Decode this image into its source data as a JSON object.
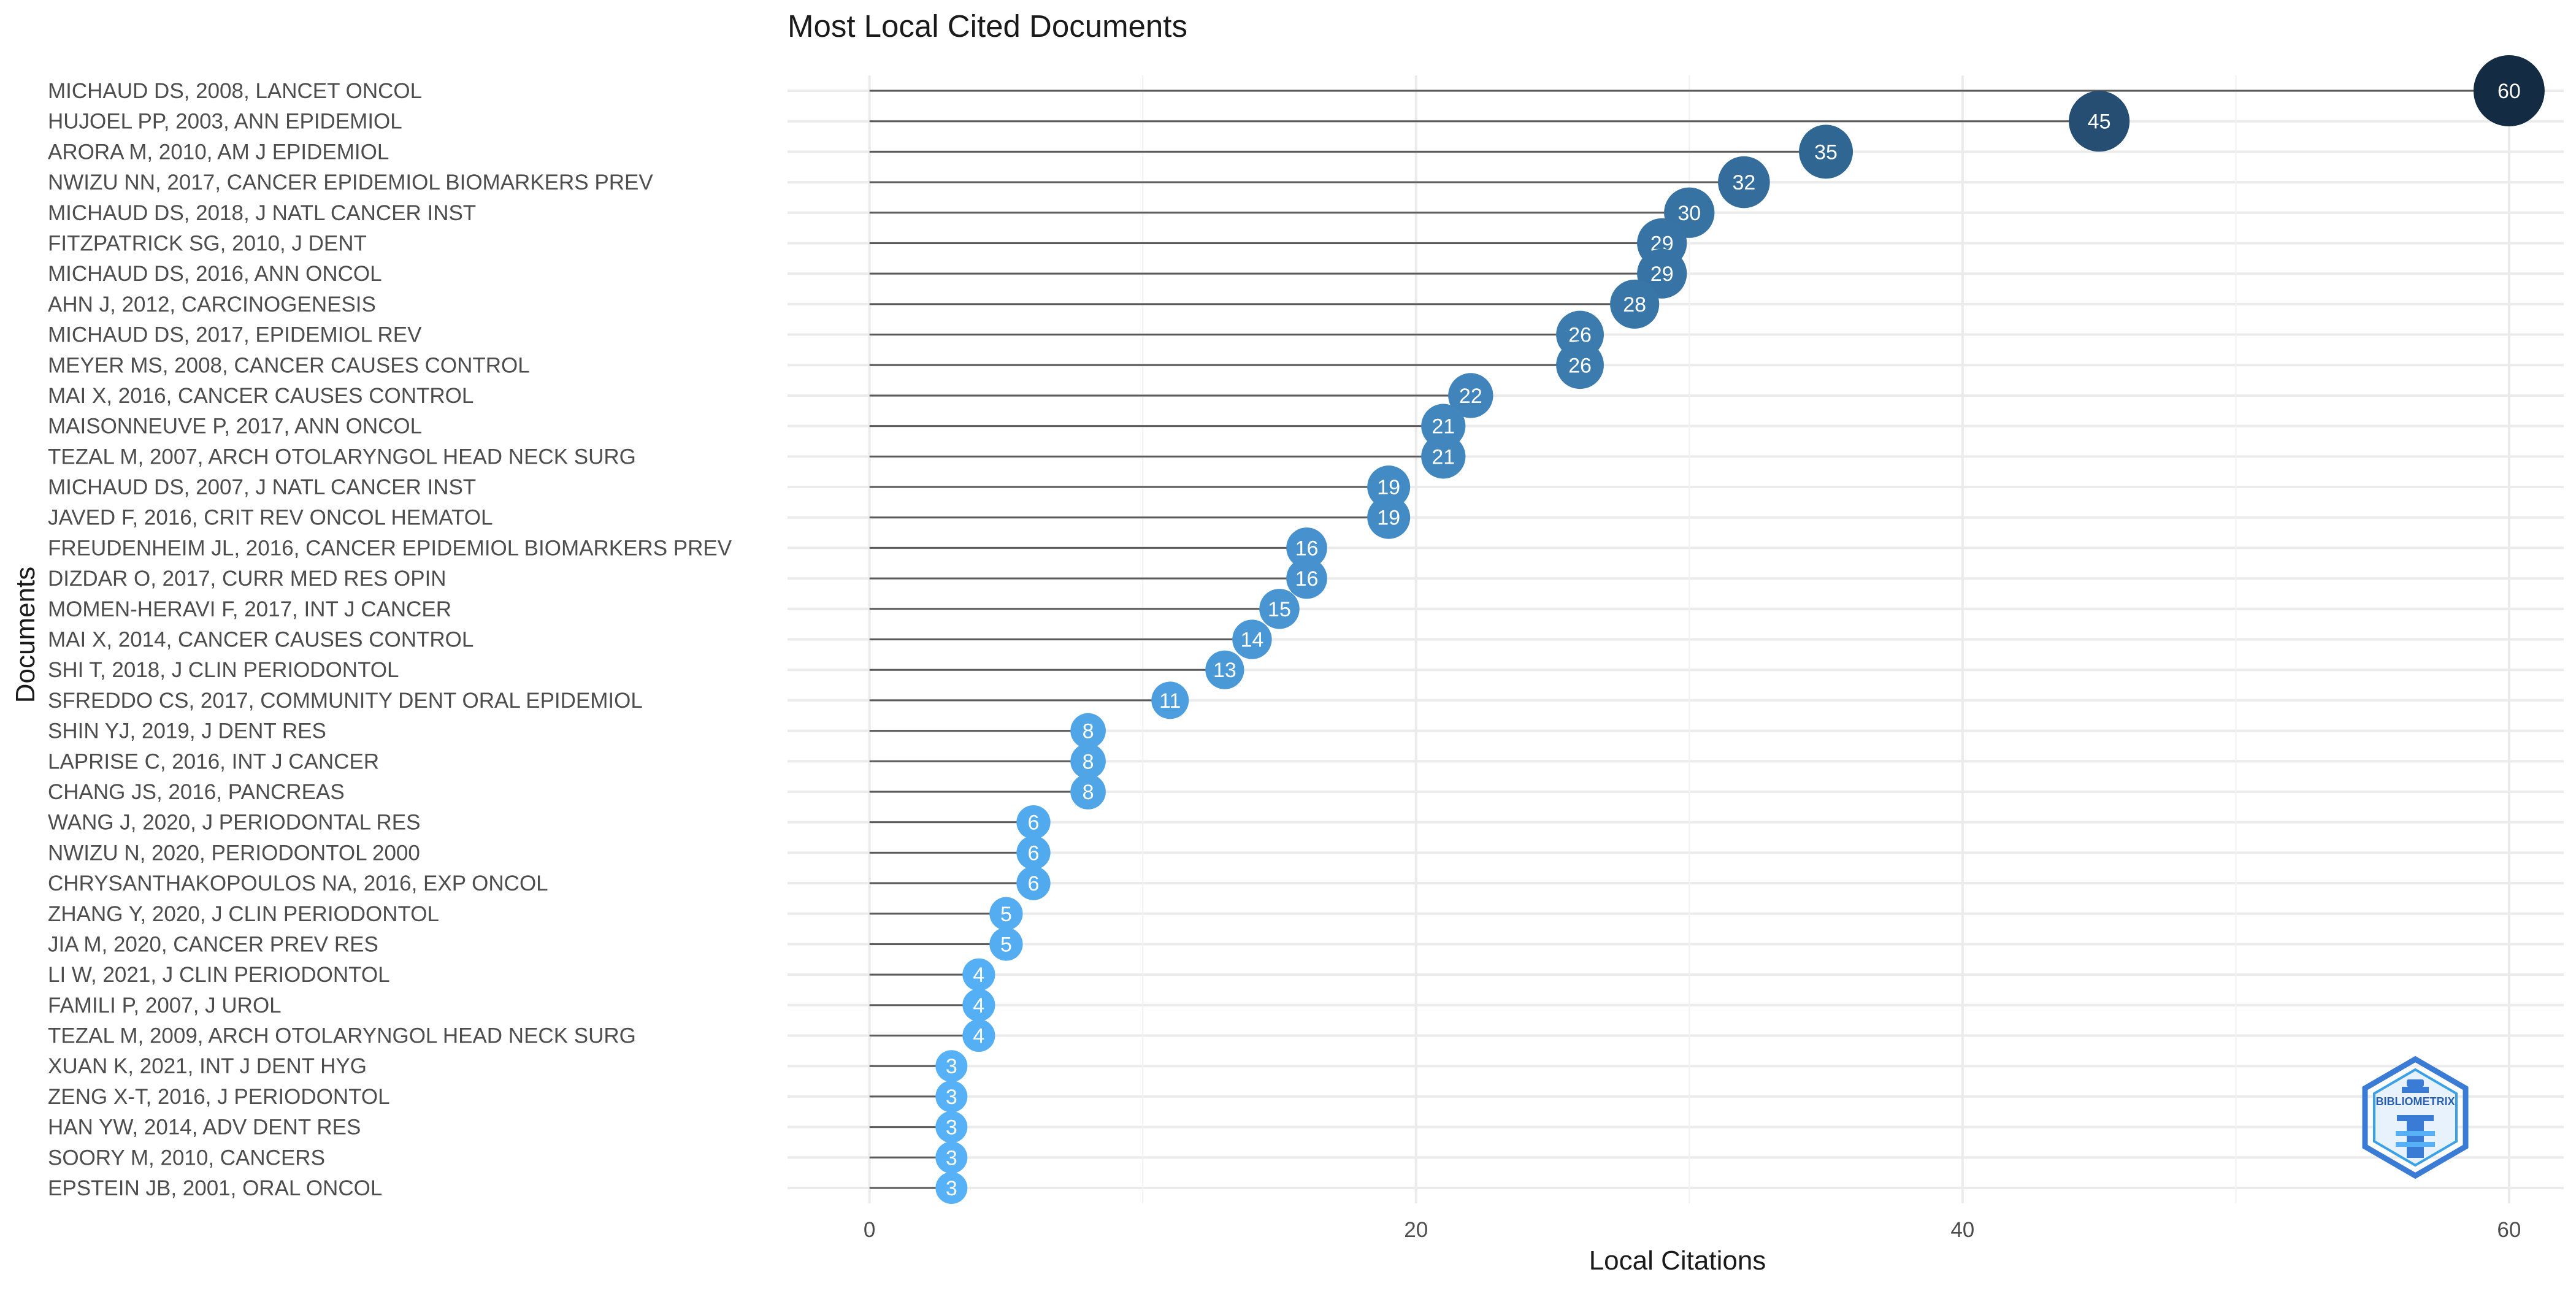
{
  "chart_data": {
    "type": "lollipop",
    "title": "Most Local Cited Documents",
    "xlabel": "Local Citations",
    "ylabel": "Documents",
    "xlim": [
      -3,
      62
    ],
    "xticks": [
      0,
      20,
      40,
      60
    ],
    "grid": true,
    "legend": "none",
    "categories": [
      "MICHAUD DS, 2008, LANCET ONCOL",
      "HUJOEL PP, 2003, ANN EPIDEMIOL",
      "ARORA M, 2010, AM J EPIDEMIOL",
      "NWIZU NN, 2017, CANCER EPIDEMIOL BIOMARKERS PREV",
      "MICHAUD DS, 2018, J NATL CANCER INST",
      "FITZPATRICK SG, 2010, J DENT",
      "MICHAUD DS, 2016, ANN ONCOL",
      "AHN J, 2012, CARCINOGENESIS",
      "MICHAUD DS, 2017, EPIDEMIOL REV",
      "MEYER MS, 2008, CANCER CAUSES CONTROL",
      "MAI X, 2016, CANCER CAUSES CONTROL",
      "MAISONNEUVE P, 2017, ANN ONCOL",
      "TEZAL M, 2007, ARCH OTOLARYNGOL HEAD NECK SURG",
      "MICHAUD DS, 2007, J NATL CANCER INST",
      "JAVED F, 2016, CRIT REV ONCOL HEMATOL",
      "FREUDENHEIM JL, 2016, CANCER EPIDEMIOL BIOMARKERS PREV",
      "DIZDAR O, 2017, CURR MED RES OPIN",
      "MOMEN-HERAVI F, 2017, INT J CANCER",
      "MAI X, 2014, CANCER CAUSES CONTROL",
      "SHI T, 2018, J CLIN PERIODONTOL",
      "SFREDDO CS, 2017, COMMUNITY DENT ORAL EPIDEMIOL",
      "SHIN YJ, 2019, J DENT RES",
      "LAPRISE C, 2016, INT J CANCER",
      "CHANG JS, 2016, PANCREAS",
      "WANG J, 2020, J PERIODONTAL RES",
      "NWIZU N, 2020, PERIODONTOL 2000",
      "CHRYSANTHAKOPOULOS NA, 2016, EXP ONCOL",
      "ZHANG Y, 2020, J CLIN PERIODONTOL",
      "JIA M, 2020, CANCER PREV RES",
      "LI W, 2021, J CLIN PERIODONTOL",
      "FAMILI P, 2007, J UROL",
      "TEZAL M, 2009, ARCH OTOLARYNGOL HEAD NECK SURG",
      "XUAN K, 2021, INT J DENT HYG",
      "ZENG X-T, 2016, J PERIODONTOL",
      "HAN YW, 2014, ADV DENT RES",
      "SOORY M, 2010, CANCERS",
      "EPSTEIN JB, 2001, ORAL ONCOL"
    ],
    "values": [
      60,
      45,
      35,
      32,
      30,
      29,
      29,
      28,
      26,
      26,
      22,
      21,
      21,
      19,
      19,
      16,
      16,
      15,
      14,
      13,
      11,
      8,
      8,
      8,
      6,
      6,
      6,
      5,
      5,
      4,
      4,
      4,
      3,
      3,
      3,
      3,
      3
    ],
    "colors": {
      "low": "#56b1f7",
      "high": "#132b43"
    }
  },
  "logo": {
    "text": "BIBLIOMETRIX",
    "color": "#3a7bd5"
  }
}
